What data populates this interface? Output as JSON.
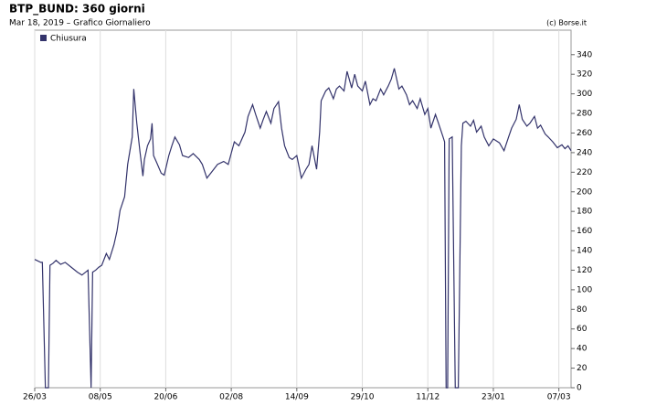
{
  "chart_data": {
    "type": "line",
    "title": "BTP_BUND: 360 giorni",
    "subtitle": "Mar 18, 2019 – Grafico Giornaliero",
    "source": "(c) Borse.it",
    "x": [
      0,
      4,
      5,
      7,
      9,
      10,
      12,
      14,
      17,
      20,
      24,
      28,
      31,
      35,
      37,
      38,
      40,
      42,
      44,
      47,
      49,
      52,
      54,
      56,
      59,
      61,
      64,
      65,
      67,
      69,
      71,
      72,
      74,
      76,
      77,
      78,
      80,
      83,
      85,
      88,
      90,
      92,
      95,
      97,
      101,
      104,
      108,
      110,
      113,
      116,
      120,
      124,
      127,
      131,
      134,
      138,
      140,
      143,
      145,
      148,
      150,
      152,
      155,
      157,
      160,
      162,
      164,
      167,
      169,
      172,
      175,
      178,
      180,
      182,
      185,
      187,
      188,
      191,
      193,
      196,
      198,
      200,
      203,
      205,
      208,
      210,
      212,
      215,
      217,
      220,
      222,
      224,
      227,
      229,
      232,
      234,
      236,
      239,
      241,
      244,
      246,
      248,
      251,
      253,
      256,
      258,
      260,
      263,
      265,
      268,
      269,
      270,
      271,
      272,
      274,
      276,
      278,
      280,
      281,
      283,
      286,
      288,
      290,
      293,
      295,
      298,
      301,
      305,
      308,
      311,
      313,
      316,
      318,
      320,
      323,
      325,
      328,
      330,
      332,
      335,
      337,
      340,
      343,
      346,
      348,
      350,
      352
    ],
    "series": [
      {
        "name": "Chiusura",
        "color": "#33336b",
        "values": [
          131,
          128,
          128,
          0,
          0,
          125,
          127,
          130,
          126,
          128,
          123,
          118,
          115,
          120,
          0,
          118,
          120,
          123,
          125,
          137,
          131,
          146,
          160,
          181,
          195,
          228,
          256,
          305,
          270,
          242,
          216,
          233,
          247,
          254,
          270,
          237,
          230,
          219,
          217,
          237,
          247,
          256,
          248,
          237,
          235,
          239,
          233,
          228,
          214,
          220,
          228,
          231,
          228,
          251,
          247,
          261,
          277,
          289,
          279,
          265,
          274,
          282,
          270,
          285,
          292,
          265,
          247,
          235,
          233,
          237,
          214,
          223,
          228,
          247,
          223,
          261,
          293,
          303,
          306,
          295,
          305,
          308,
          303,
          323,
          306,
          320,
          308,
          303,
          313,
          289,
          295,
          293,
          305,
          299,
          308,
          315,
          326,
          305,
          308,
          299,
          289,
          293,
          285,
          295,
          279,
          285,
          265,
          279,
          270,
          256,
          251,
          0,
          0,
          254,
          256,
          0,
          0,
          247,
          270,
          272,
          267,
          273,
          261,
          267,
          256,
          247,
          254,
          250,
          242,
          256,
          265,
          274,
          289,
          274,
          267,
          270,
          277,
          265,
          268,
          259,
          256,
          251,
          245,
          248,
          244,
          247,
          242
        ]
      }
    ],
    "xlim": [
      0,
      352
    ],
    "xticks": [
      {
        "value": 0,
        "label": "26/03"
      },
      {
        "value": 43,
        "label": "08/05"
      },
      {
        "value": 86,
        "label": "20/06"
      },
      {
        "value": 129,
        "label": "02/08"
      },
      {
        "value": 172,
        "label": "14/09"
      },
      {
        "value": 215,
        "label": "29/10"
      },
      {
        "value": 258,
        "label": "11/12"
      },
      {
        "value": 301,
        "label": "23/01"
      },
      {
        "value": 344,
        "label": "07/03"
      }
    ],
    "ylim": [
      0,
      365
    ],
    "yticks": [
      0,
      20,
      40,
      60,
      80,
      100,
      120,
      140,
      160,
      180,
      200,
      220,
      240,
      260,
      280,
      300,
      320,
      340
    ],
    "xgrid": true
  }
}
